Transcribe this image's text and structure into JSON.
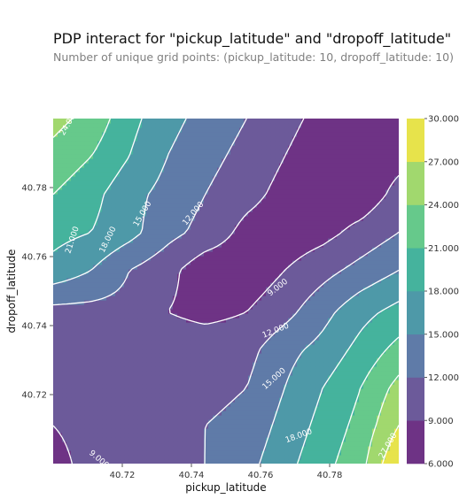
{
  "chart_data": {
    "type": "heatmap",
    "title": "PDP interact for \"pickup_latitude\" and \"dropoff_latitude\"",
    "subtitle": "Number of unique grid points: (pickup_latitude: 10, dropoff_latitude: 10)",
    "xlabel": "pickup_latitude",
    "ylabel": "dropoff_latitude",
    "xlim": [
      40.7,
      40.8
    ],
    "ylim": [
      40.7,
      40.8
    ],
    "x_ticks": [
      "40.72",
      "40.74",
      "40.76",
      "40.78"
    ],
    "y_ticks": [
      "40.72",
      "40.74",
      "40.76",
      "40.78"
    ],
    "grid_x": [
      40.7,
      40.711,
      40.722,
      40.733,
      40.744,
      40.756,
      40.767,
      40.778,
      40.789,
      40.8
    ],
    "grid_y": [
      40.7,
      40.711,
      40.722,
      40.733,
      40.744,
      40.756,
      40.767,
      40.778,
      40.789,
      40.8
    ],
    "z": [
      [
        8,
        10,
        11,
        11,
        12,
        14,
        17,
        20,
        23,
        30
      ],
      [
        9,
        10,
        11,
        11,
        12,
        13,
        16,
        19,
        22,
        27
      ],
      [
        10,
        10,
        11,
        11,
        11,
        12,
        15,
        18,
        21,
        25
      ],
      [
        11,
        11,
        10,
        11,
        11,
        11,
        14,
        16,
        19,
        22
      ],
      [
        11,
        11,
        11,
        9,
        8,
        9,
        11,
        14,
        17,
        19
      ],
      [
        17,
        15,
        12,
        10,
        7,
        7,
        9,
        11,
        13,
        15
      ],
      [
        19,
        18,
        16,
        13,
        11,
        8,
        7,
        8,
        10,
        12
      ],
      [
        21,
        19,
        16,
        14,
        12,
        10,
        8,
        7,
        7,
        10
      ],
      [
        23,
        21,
        18,
        15,
        13,
        11,
        9,
        7,
        7,
        8
      ],
      [
        25,
        23,
        19,
        16,
        14,
        12,
        10,
        8,
        7,
        7
      ]
    ],
    "levels": [
      6,
      9,
      12,
      15,
      18,
      21,
      24,
      27,
      30
    ],
    "colorbar_ticks": [
      "6.000",
      "9.000",
      "12.000",
      "15.000",
      "18.000",
      "21.000",
      "24.000",
      "27.000",
      "30.000"
    ],
    "colors": [
      "#6e3385",
      "#6c5a9a",
      "#5f7ba8",
      "#4e99a8",
      "#45b39d",
      "#66c98b",
      "#a1d86e",
      "#e7e34b"
    ],
    "contour_labels": [
      "24.000",
      "21.000",
      "18.000",
      "15.000",
      "12.000",
      "9.000",
      "12.000",
      "15.000",
      "18.000",
      "9.000",
      "9.000",
      "27.000"
    ]
  }
}
